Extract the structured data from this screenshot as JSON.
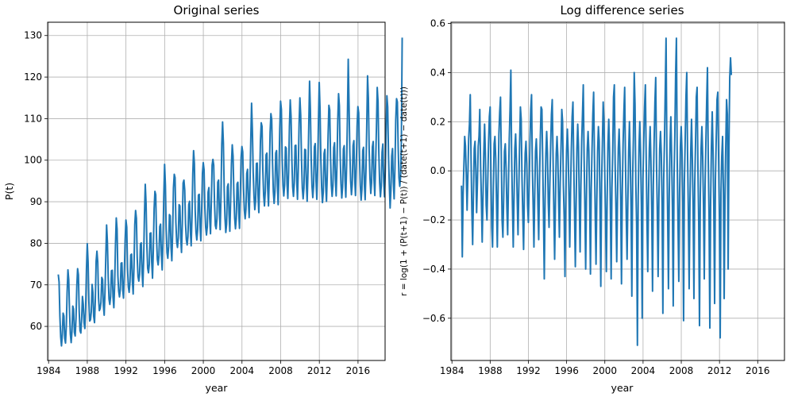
{
  "chart_data": [
    {
      "type": "line",
      "title": "Original series",
      "xlabel": "year",
      "ylabel": "P(t)",
      "xlim": [
        1983.9,
        2018.8
      ],
      "ylim": [
        51.8,
        133.2
      ],
      "xticks": [
        1984,
        1988,
        1992,
        1996,
        2000,
        2004,
        2008,
        2012,
        2016
      ],
      "xtick_labels": [
        "1984",
        "1988",
        "1992",
        "1996",
        "2000",
        "2004",
        "2008",
        "2012",
        "2016"
      ],
      "yticks": [
        60,
        70,
        80,
        90,
        100,
        110,
        120,
        130
      ],
      "ytick_labels": [
        "60",
        "70",
        "80",
        "90",
        "100",
        "110",
        "120",
        "130"
      ],
      "grid": true,
      "color": "#1f77b4",
      "series": [
        {
          "x_start": 1985.0,
          "x_step": 0.0833,
          "values": [
            72.5,
            70.7,
            62.5,
            57.5,
            55.3,
            58.0,
            63.2,
            62.5,
            57.1,
            56.0,
            60.3,
            68.3,
            73.6,
            71.2,
            63.4,
            58.2,
            56.1,
            58.8,
            64.9,
            64.2,
            58.6,
            57.7,
            61.8,
            69.6,
            73.9,
            72.4,
            63.6,
            59.0,
            58.4,
            61.7,
            67.2,
            65.4,
            60.9,
            59.5,
            64.5,
            73.7,
            79.9,
            75.5,
            66.0,
            61.3,
            61.6,
            63.5,
            70.1,
            68.1,
            62.4,
            60.9,
            66.4,
            75.7,
            78.1,
            75.5,
            66.8,
            63.8,
            64.3,
            65.8,
            71.8,
            71.3,
            65.1,
            62.7,
            68.2,
            76.6,
            84.4,
            80.3,
            71.9,
            66.6,
            65.3,
            67.2,
            73.4,
            73.5,
            67.0,
            64.5,
            70.1,
            79.5,
            86.1,
            83.4,
            72.2,
            68.5,
            67.1,
            68.9,
            75.2,
            75.3,
            68.8,
            66.8,
            72.5,
            80.7,
            85.6,
            83.9,
            73.9,
            69.5,
            68.2,
            70.6,
            77.2,
            77.4,
            71.0,
            67.8,
            74.2,
            84.5,
            87.9,
            86.0,
            76.5,
            72.0,
            70.9,
            72.6,
            79.8,
            80.1,
            73.2,
            69.6,
            76.1,
            86.8,
            94.2,
            89.6,
            79.4,
            74.0,
            72.9,
            75.0,
            82.4,
            82.5,
            75.5,
            71.6,
            78.2,
            88.3,
            92.5,
            91.7,
            81.2,
            76.1,
            74.8,
            77.1,
            84.0,
            84.6,
            77.3,
            73.6,
            80.4,
            91.2,
            99.0,
            94.0,
            83.4,
            77.8,
            76.4,
            79.3,
            86.9,
            86.6,
            79.1,
            75.8,
            82.7,
            93.3,
            96.6,
            95.8,
            85.1,
            80.4,
            79.0,
            81.3,
            89.3,
            89.0,
            81.6,
            77.8,
            84.8,
            94.5,
            95.2,
            92.8,
            84.7,
            80.9,
            79.6,
            81.6,
            89.3,
            90.1,
            83.1,
            79.4,
            86.3,
            96.6,
            102.3,
            99.2,
            87.8,
            82.7,
            80.8,
            83.2,
            91.6,
            91.8,
            84.2,
            80.6,
            87.7,
            96.8,
            99.4,
            97.7,
            88.5,
            83.9,
            82.0,
            84.0,
            92.3,
            93.4,
            86.0,
            82.3,
            89.7,
            98.8,
            100.2,
            98.8,
            89.6,
            84.3,
            83.5,
            85.9,
            94.7,
            95.2,
            87.6,
            83.3,
            91.2,
            103.8,
            109.2,
            104.1,
            92.9,
            86.0,
            82.6,
            84.6,
            93.6,
            94.3,
            87.1,
            82.9,
            90.4,
            99.1,
            103.7,
            101.0,
            92.1,
            86.1,
            83.5,
            85.9,
            94.3,
            94.7,
            87.6,
            83.6,
            91.2,
            100.6,
            103.3,
            102.0,
            93.3,
            88.0,
            85.9,
            88.2,
            96.8,
            97.8,
            90.2,
            86.2,
            93.9,
            104.8,
            113.7,
            107.1,
            97.1,
            91.4,
            88.1,
            90.3,
            99.2,
            99.3,
            91.6,
            87.4,
            94.6,
            104.6,
            109.0,
            108.1,
            97.4,
            91.5,
            89.0,
            92.5,
            101.3,
            101.7,
            93.2,
            89.0,
            96.2,
            106.7,
            111.2,
            109.8,
            99.5,
            92.5,
            89.6,
            92.5,
            101.7,
            102.3,
            93.9,
            89.3,
            96.7,
            107.6,
            114.2,
            112.2,
            100.5,
            94.0,
            91.4,
            94.0,
            103.2,
            102.9,
            94.4,
            90.8,
            97.3,
            108.2,
            114.5,
            110.5,
            100.1,
            93.6,
            91.3,
            94.4,
            103.5,
            103.6,
            95.2,
            90.6,
            98.1,
            108.8,
            115.0,
            110.8,
            100.1,
            93.3,
            90.7,
            93.3,
            102.6,
            102.5,
            94.4,
            90.1,
            97.2,
            108.2,
            119.0,
            112.2,
            100.3,
            93.8,
            91.0,
            93.9,
            103.2,
            104.0,
            95.0,
            90.6,
            98.0,
            109.0,
            118.7,
            112.3,
            100.3,
            93.4,
            89.8,
            92.3,
            101.6,
            102.6,
            94.0,
            90.1,
            96.7,
            105.9,
            113.2,
            112.1,
            100.9,
            94.0,
            91.3,
            93.9,
            103.0,
            104.2,
            95.5,
            91.4,
            98.7,
            109.5,
            116.0,
            113.1,
            101.1,
            94.3,
            90.9,
            93.5,
            102.7,
            103.5,
            95.2,
            91.1,
            98.8,
            110.0,
            124.3,
            113.4,
            101.9,
            95.0,
            91.7,
            94.2,
            103.5,
            104.7,
            95.9,
            91.5,
            98.6,
            108.2,
            112.9,
            111.4,
            100.9,
            93.9,
            90.4,
            93.0,
            102.3,
            103.1,
            94.3,
            90.5,
            97.5,
            108.3,
            120.3,
            115.0,
            102.4,
            95.7,
            92.0,
            94.6,
            103.2,
            104.5,
            95.4,
            91.5,
            99.1,
            107.6,
            117.5,
            114.1,
            101.7,
            94.6,
            91.2,
            93.8,
            101.9,
            103.9,
            94.9,
            91.2,
            97.5,
            106.6,
            115.5,
            112.8,
            101.3,
            94.2,
            88.5,
            92.8,
            101.0,
            102.8,
            94.6,
            90.7,
            98.0,
            109.7,
            114.8,
            114.0,
            103.3,
            95.8,
            93.7,
            96.0,
            104.8,
            129.5
          ]
        }
      ]
    },
    {
      "type": "line",
      "title": "Log difference series",
      "xlabel": "year",
      "ylabel": "r = log(1 + (P(t+1) − P(t)) / (date(t+1) − date(t)))",
      "xlim": [
        1983.9,
        2018.8
      ],
      "ylim": [
        -0.772,
        0.605
      ],
      "xticks": [
        1984,
        1988,
        1992,
        1996,
        2000,
        2004,
        2008,
        2012,
        2016
      ],
      "xtick_labels": [
        "1984",
        "1988",
        "1992",
        "1996",
        "2000",
        "2004",
        "2008",
        "2012",
        "2016"
      ],
      "yticks": [
        -0.6,
        -0.4,
        -0.2,
        0.0,
        0.2,
        0.4,
        0.6
      ],
      "ytick_labels": [
        "−0.6",
        "−0.4",
        "−0.2",
        "0.0",
        "0.2",
        "0.4",
        "0.6"
      ],
      "grid": true,
      "color": "#1f77b4",
      "series": [
        {
          "x_start": 1985.0,
          "x_step": 0.0833,
          "values": [
            -0.06,
            -0.35,
            -0.1,
            0.02,
            0.14,
            0.1,
            -0.02,
            -0.16,
            -0.02,
            0.13,
            0.19,
            0.31,
            0.05,
            -0.16,
            -0.3,
            -0.1,
            0.09,
            0.12,
            0.0,
            -0.17,
            -0.05,
            0.1,
            0.14,
            0.25,
            0.02,
            -0.12,
            -0.29,
            -0.11,
            0.07,
            0.19,
            0.07,
            -0.14,
            -0.2,
            -0.04,
            0.11,
            0.22,
            0.26,
            -0.01,
            -0.23,
            -0.31,
            -0.08,
            0.11,
            0.14,
            0.05,
            -0.13,
            -0.31,
            -0.06,
            0.15,
            0.24,
            0.3,
            0.06,
            -0.2,
            -0.27,
            -0.11,
            0.08,
            0.11,
            0.01,
            -0.15,
            -0.26,
            -0.05,
            0.13,
            0.25,
            0.41,
            0.05,
            -0.14,
            -0.31,
            -0.11,
            0.09,
            0.15,
            0.04,
            -0.12,
            -0.26,
            -0.07,
            0.11,
            0.26,
            0.21,
            -0.03,
            -0.18,
            -0.32,
            -0.09,
            0.07,
            0.12,
            0.03,
            -0.14,
            -0.21,
            -0.06,
            0.12,
            0.25,
            0.31,
            0.02,
            -0.14,
            -0.31,
            -0.1,
            0.08,
            0.13,
            0.04,
            -0.14,
            -0.28,
            -0.04,
            0.13,
            0.26,
            0.25,
            0.04,
            -0.18,
            -0.44,
            -0.12,
            0.07,
            0.16,
            0.07,
            -0.13,
            -0.23,
            -0.05,
            0.1,
            0.23,
            0.29,
            0.06,
            -0.16,
            -0.36,
            -0.13,
            0.07,
            0.14,
            0.06,
            -0.12,
            -0.27,
            -0.05,
            0.09,
            0.25,
            0.2,
            -0.06,
            -0.19,
            -0.43,
            -0.11,
            0.08,
            0.17,
            0.08,
            -0.1,
            -0.31,
            -0.08,
            0.09,
            0.22,
            0.28,
            0.03,
            -0.17,
            -0.39,
            -0.14,
            0.09,
            0.19,
            0.1,
            -0.13,
            -0.33,
            -0.06,
            0.12,
            0.23,
            0.35,
            0.06,
            -0.15,
            -0.4,
            -0.1,
            0.09,
            0.16,
            0.08,
            -0.11,
            -0.42,
            -0.07,
            0.09,
            0.23,
            0.32,
            0.06,
            -0.18,
            -0.38,
            -0.12,
            0.08,
            0.18,
            0.12,
            -0.14,
            -0.47,
            -0.05,
            0.11,
            0.28,
            0.2,
            -0.01,
            -0.2,
            -0.41,
            -0.11,
            0.11,
            0.21,
            0.08,
            -0.15,
            -0.44,
            -0.07,
            0.08,
            0.3,
            0.35,
            0.03,
            -0.15,
            -0.37,
            -0.11,
            0.09,
            0.17,
            0.06,
            -0.12,
            -0.46,
            -0.08,
            0.11,
            0.24,
            0.34,
            0.04,
            -0.19,
            -0.36,
            -0.13,
            0.08,
            0.2,
            0.05,
            -0.15,
            -0.51,
            -0.03,
            0.14,
            0.4,
            0.27,
            -0.05,
            -0.22,
            -0.71,
            -0.1,
            0.1,
            0.2,
            0.07,
            -0.14,
            -0.6,
            -0.03,
            0.13,
            0.26,
            0.35,
            0.06,
            -0.2,
            -0.41,
            -0.09,
            0.09,
            0.18,
            0.04,
            -0.16,
            -0.49,
            -0.06,
            0.12,
            0.28,
            0.38,
            0.03,
            -0.17,
            -0.43,
            -0.11,
            0.09,
            0.16,
            0.07,
            -0.14,
            -0.58,
            -0.04,
            0.12,
            0.33,
            0.54,
            0.08,
            -0.18,
            -0.48,
            -0.1,
            0.11,
            0.22,
            0.06,
            -0.15,
            -0.55,
            -0.03,
            0.14,
            0.39,
            0.54,
            0.05,
            -0.21,
            -0.45,
            -0.09,
            0.1,
            0.18,
            0.08,
            -0.13,
            -0.61,
            -0.05,
            0.12,
            0.3,
            0.4,
            0.07,
            -0.17,
            -0.48,
            -0.13,
            0.08,
            0.21,
            0.05,
            -0.15,
            -0.52,
            -0.06,
            0.11,
            0.3,
            0.34,
            0.02,
            -0.2,
            -0.63,
            -0.1,
            0.09,
            0.18,
            0.06,
            -0.14,
            -0.44,
            -0.07,
            0.11,
            0.28,
            0.42,
            0.05,
            -0.18,
            -0.64,
            -0.12,
            0.1,
            0.24,
            0.08,
            -0.16,
            -0.54,
            -0.04,
            0.13,
            0.29,
            0.32,
            0.06,
            -0.19,
            -0.68,
            -0.09,
            0.06,
            0.14,
            -0.07,
            -0.52,
            -0.12,
            0.1,
            0.29,
            0.23,
            -0.4,
            0.1,
            0.38,
            0.46,
            0.39
          ]
        }
      ]
    }
  ]
}
